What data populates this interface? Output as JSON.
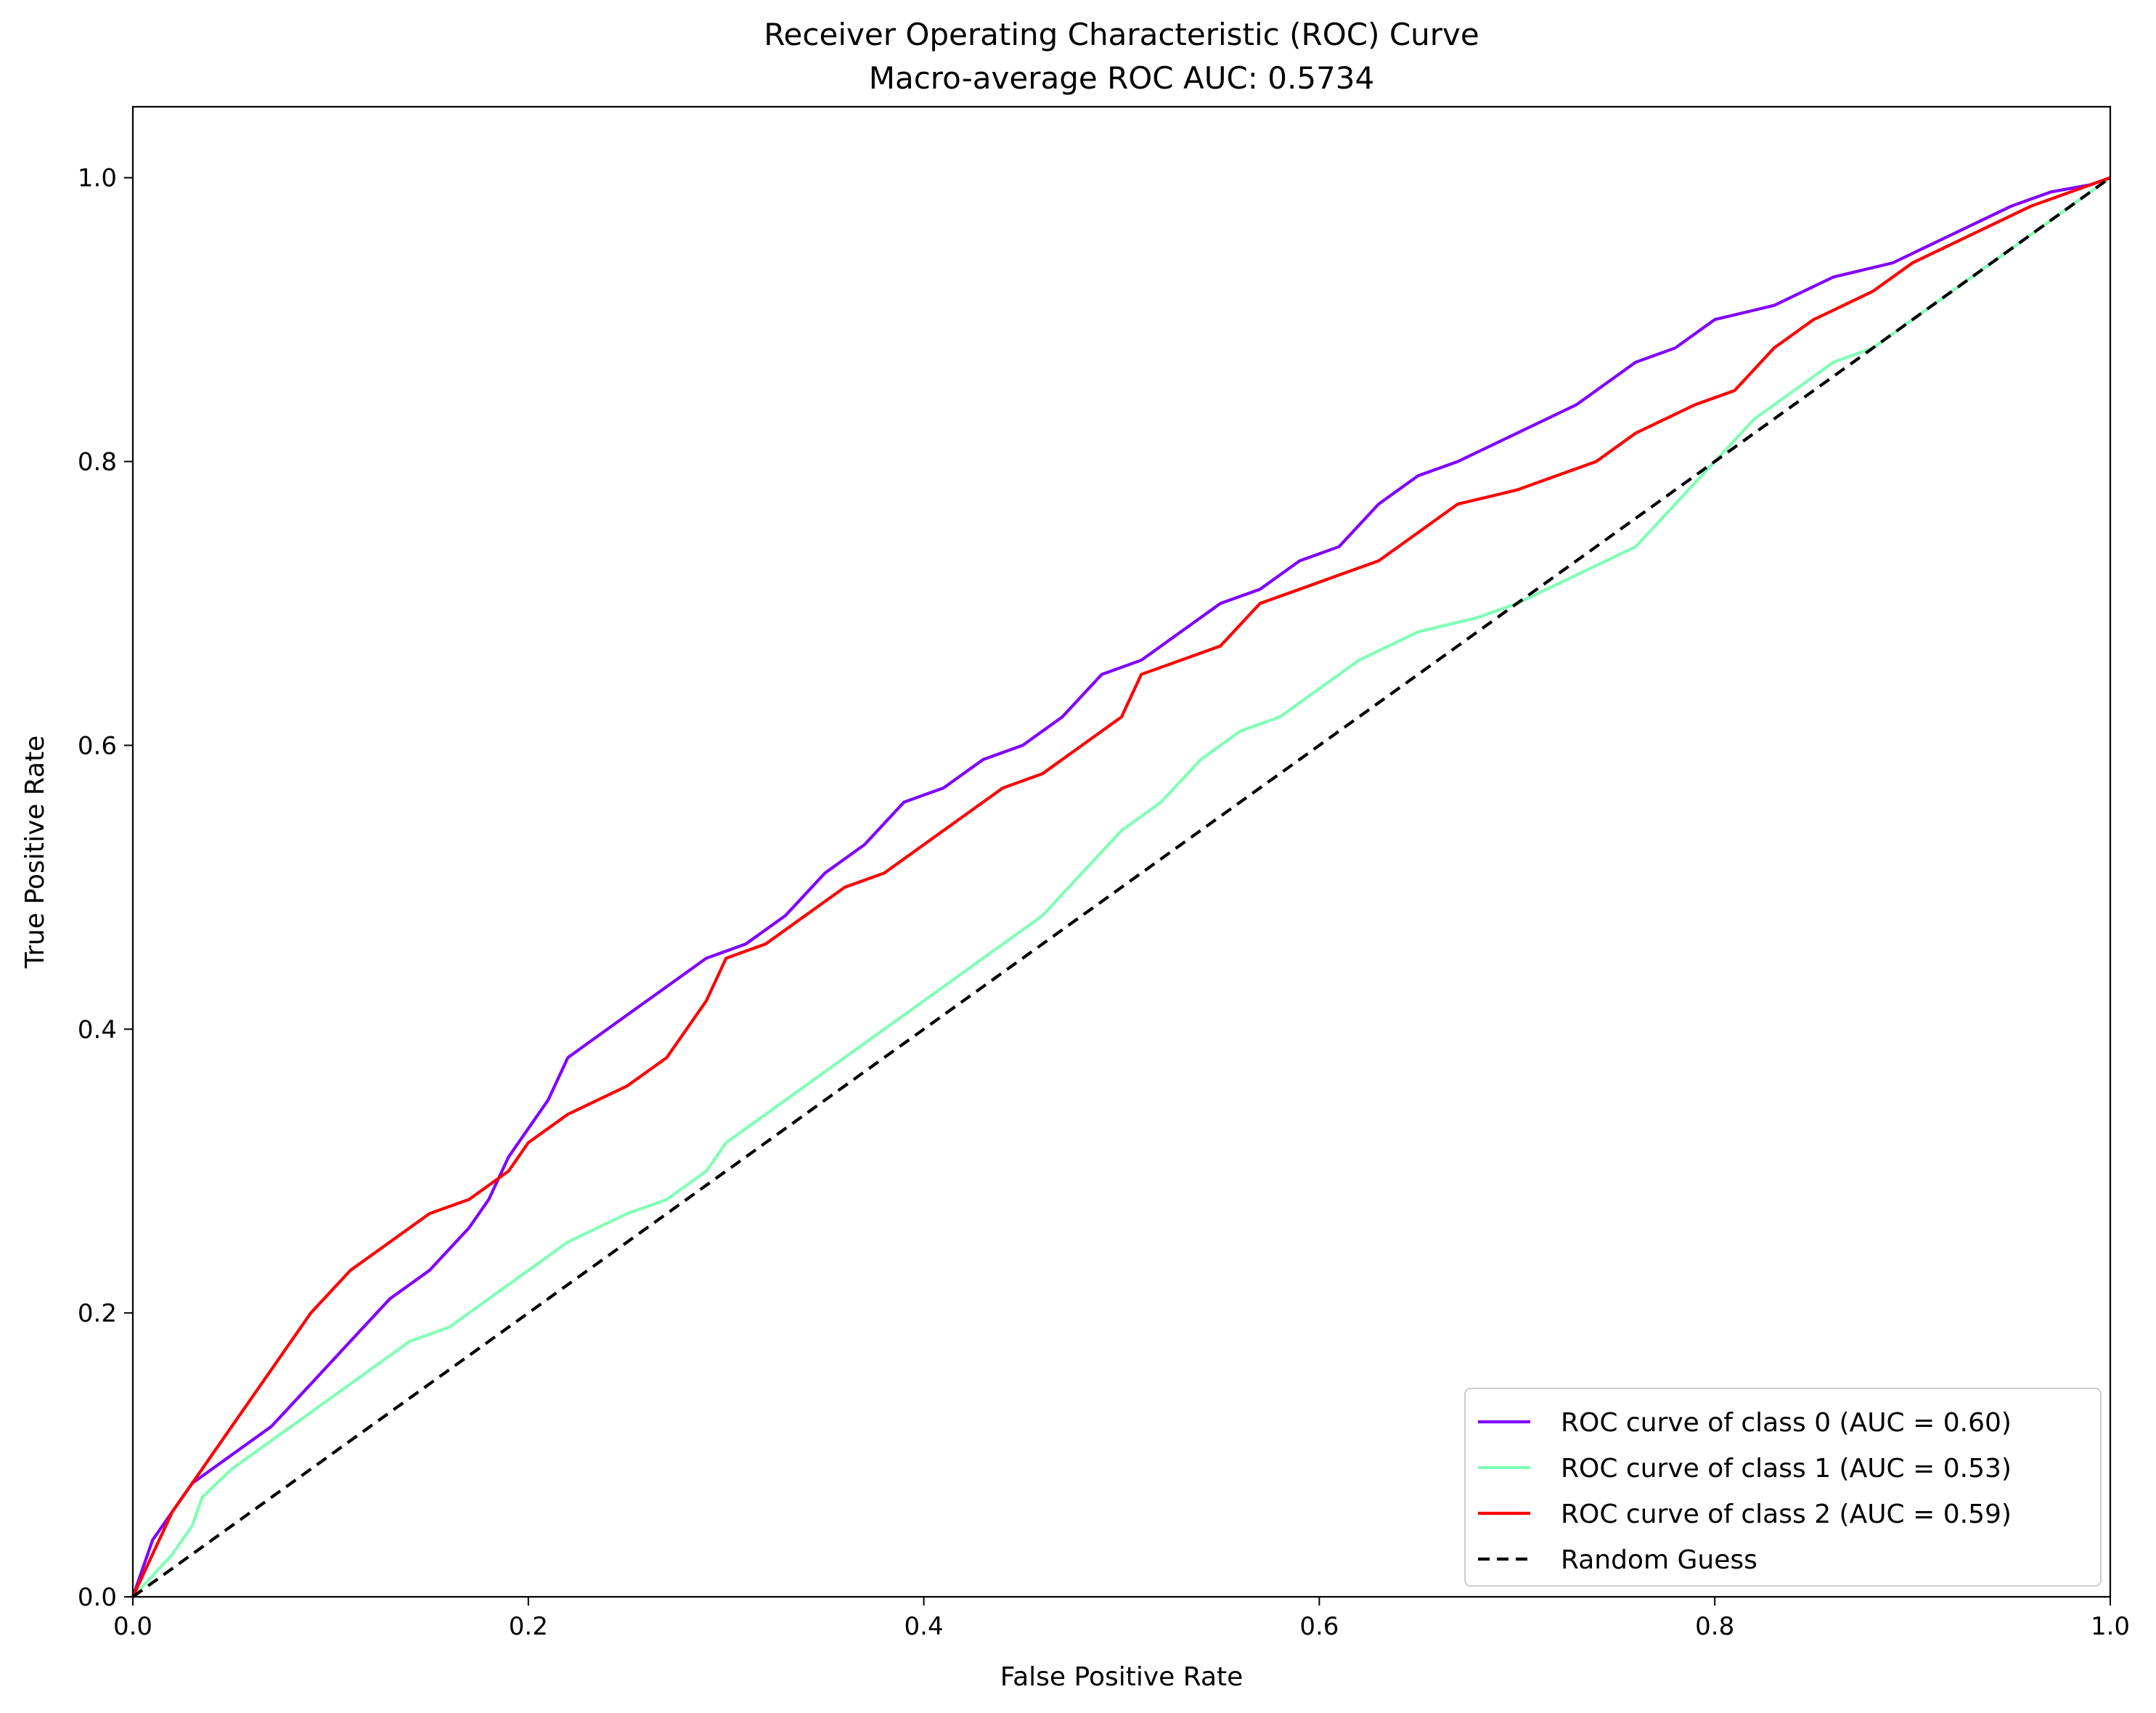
{
  "chart_data": {
    "type": "line",
    "title": "Receiver Operating Characteristic (ROC) Curve",
    "subtitle": "Macro-average ROC AUC: 0.5734",
    "xlabel": "False Positive Rate",
    "ylabel": "True Positive Rate",
    "xlim": [
      0.0,
      1.0
    ],
    "ylim": [
      0.0,
      1.05
    ],
    "xticks": [
      "0.0",
      "0.2",
      "0.4",
      "0.6",
      "0.8",
      "1.0"
    ],
    "yticks": [
      "0.0",
      "0.2",
      "0.4",
      "0.6",
      "0.8",
      "1.0"
    ],
    "grid": false,
    "legend_position": "lower-right",
    "series": [
      {
        "name": "ROC curve of class 0 (AUC = 0.60)",
        "color": "#8000ff",
        "style": "solid",
        "x": [
          0,
          0.01,
          0.02,
          0.03,
          0.05,
          0.07,
          0.09,
          0.11,
          0.13,
          0.15,
          0.17,
          0.18,
          0.19,
          0.2,
          0.21,
          0.22,
          0.23,
          0.25,
          0.27,
          0.29,
          0.31,
          0.33,
          0.35,
          0.37,
          0.39,
          0.41,
          0.43,
          0.45,
          0.47,
          0.49,
          0.51,
          0.53,
          0.55,
          0.57,
          0.59,
          0.61,
          0.63,
          0.65,
          0.67,
          0.7,
          0.73,
          0.76,
          0.78,
          0.8,
          0.83,
          0.86,
          0.89,
          0.92,
          0.95,
          0.97,
          0.99,
          1.0
        ],
        "y": [
          0,
          0.04,
          0.06,
          0.08,
          0.1,
          0.12,
          0.15,
          0.18,
          0.21,
          0.23,
          0.26,
          0.28,
          0.31,
          0.33,
          0.35,
          0.38,
          0.39,
          0.41,
          0.43,
          0.45,
          0.46,
          0.48,
          0.51,
          0.53,
          0.56,
          0.57,
          0.59,
          0.6,
          0.62,
          0.65,
          0.66,
          0.68,
          0.7,
          0.71,
          0.73,
          0.74,
          0.77,
          0.79,
          0.8,
          0.82,
          0.84,
          0.87,
          0.88,
          0.9,
          0.91,
          0.93,
          0.94,
          0.96,
          0.98,
          0.99,
          0.995,
          1.0
        ]
      },
      {
        "name": "ROC curve of class 1 (AUC = 0.53)",
        "color": "#80ffb4",
        "style": "solid",
        "x": [
          0,
          0.02,
          0.03,
          0.035,
          0.05,
          0.07,
          0.09,
          0.11,
          0.13,
          0.14,
          0.16,
          0.18,
          0.2,
          0.22,
          0.25,
          0.27,
          0.29,
          0.3,
          0.33,
          0.35,
          0.37,
          0.39,
          0.41,
          0.42,
          0.44,
          0.46,
          0.48,
          0.5,
          0.52,
          0.54,
          0.56,
          0.58,
          0.6,
          0.62,
          0.65,
          0.68,
          0.7,
          0.73,
          0.76,
          0.78,
          0.8,
          0.82,
          0.84,
          0.86,
          0.88,
          0.9,
          0.92,
          0.94,
          0.96,
          0.98,
          1.0
        ],
        "y": [
          0,
          0.03,
          0.05,
          0.07,
          0.09,
          0.11,
          0.13,
          0.15,
          0.17,
          0.18,
          0.19,
          0.21,
          0.23,
          0.25,
          0.27,
          0.28,
          0.3,
          0.32,
          0.35,
          0.37,
          0.39,
          0.41,
          0.43,
          0.44,
          0.46,
          0.48,
          0.51,
          0.54,
          0.56,
          0.59,
          0.61,
          0.62,
          0.64,
          0.66,
          0.68,
          0.69,
          0.7,
          0.72,
          0.74,
          0.77,
          0.8,
          0.83,
          0.85,
          0.87,
          0.88,
          0.9,
          0.92,
          0.94,
          0.96,
          0.98,
          1.0
        ]
      },
      {
        "name": "ROC curve of class 2 (AUC = 0.59)",
        "color": "#ff0000",
        "style": "solid",
        "x": [
          0,
          0.01,
          0.02,
          0.03,
          0.05,
          0.07,
          0.09,
          0.11,
          0.13,
          0.15,
          0.17,
          0.19,
          0.2,
          0.22,
          0.25,
          0.27,
          0.29,
          0.3,
          0.32,
          0.34,
          0.36,
          0.38,
          0.4,
          0.42,
          0.44,
          0.46,
          0.48,
          0.5,
          0.51,
          0.53,
          0.55,
          0.57,
          0.59,
          0.61,
          0.63,
          0.65,
          0.67,
          0.7,
          0.72,
          0.74,
          0.76,
          0.79,
          0.81,
          0.83,
          0.85,
          0.88,
          0.9,
          0.93,
          0.96,
          0.98,
          1.0
        ],
        "y": [
          0,
          0.03,
          0.06,
          0.08,
          0.12,
          0.16,
          0.2,
          0.23,
          0.25,
          0.27,
          0.28,
          0.3,
          0.32,
          0.34,
          0.36,
          0.38,
          0.42,
          0.45,
          0.46,
          0.48,
          0.5,
          0.51,
          0.53,
          0.55,
          0.57,
          0.58,
          0.6,
          0.62,
          0.65,
          0.66,
          0.67,
          0.7,
          0.71,
          0.72,
          0.73,
          0.75,
          0.77,
          0.78,
          0.79,
          0.8,
          0.82,
          0.84,
          0.85,
          0.88,
          0.9,
          0.92,
          0.94,
          0.96,
          0.98,
          0.99,
          1.0
        ]
      },
      {
        "name": "Random Guess",
        "color": "#000000",
        "style": "dashed",
        "x": [
          0.0,
          1.0
        ],
        "y": [
          0.0,
          1.0
        ]
      }
    ]
  }
}
